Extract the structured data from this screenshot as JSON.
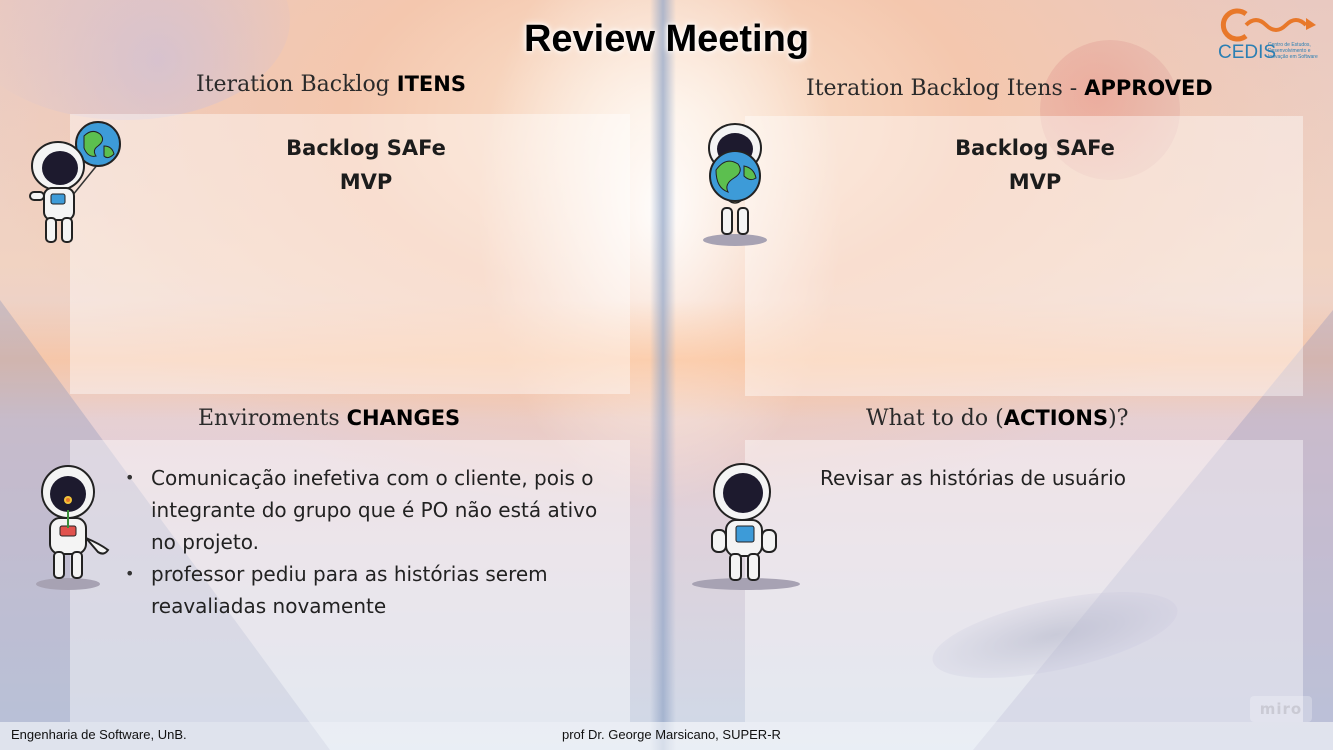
{
  "slide": {
    "title": "Review Meeting"
  },
  "sections": {
    "iteration_backlog": {
      "heading_prefix": "Iteration Backlog ",
      "heading_emphasis": "ITENS",
      "line1": "Backlog SAFe",
      "line2": "MVP"
    },
    "approved": {
      "heading_prefix": "Iteration Backlog Itens - ",
      "heading_emphasis": "APPROVED",
      "line1": "Backlog SAFe",
      "line2": "MVP"
    },
    "changes": {
      "heading_prefix": "Enviroments ",
      "heading_emphasis": "CHANGES",
      "bullets": [
        "Comunicação inefetiva com o cliente, pois o integrante do grupo que é PO não está ativo no projeto.",
        "professor pediu para as histórias serem reavaliadas novamente"
      ]
    },
    "actions": {
      "heading_prefix": "What to do (",
      "heading_emphasis": "ACTIONS",
      "heading_suffix": ")?",
      "text": "Revisar as histórias de usuário"
    }
  },
  "logo": {
    "name": "CEDIS",
    "tagline": "Centro de Estudos, Desenvolvimento e Inovação em Software",
    "icon": "cedis-logo-icon",
    "color": "#2b7fb3",
    "accent": "#e8782a"
  },
  "footer": {
    "left": "Engenharia de Software, UnB.",
    "center": "prof Dr. George Marsicano, SUPER-R"
  },
  "watermark": "miro",
  "icons": [
    "astronaut-globe-balloon-icon",
    "astronaut-holding-globe-icon",
    "astronaut-holding-flower-icon",
    "astronaut-standing-icon"
  ]
}
